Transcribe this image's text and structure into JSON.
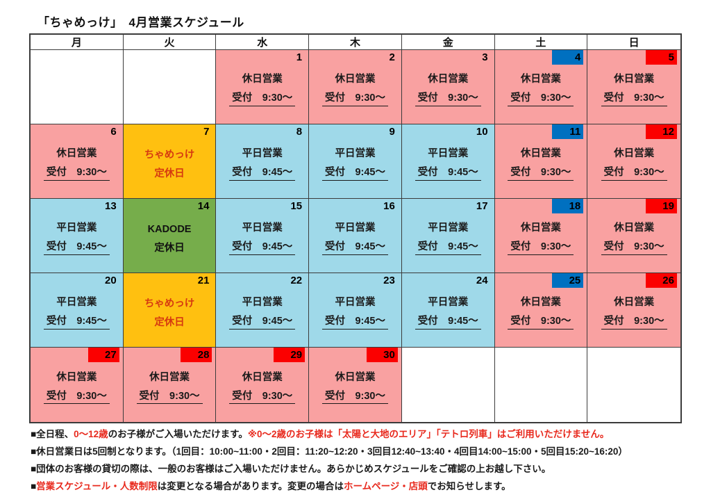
{
  "title": "「ちゃめっけ」　4月営業スケジュール",
  "colors": {
    "text": "#1a1a1a",
    "note_red": "#e8291d",
    "border": "#3b3b3b"
  },
  "calendar": {
    "weekday_headers": [
      "月",
      "火",
      "水",
      "木",
      "金",
      "土",
      "日"
    ],
    "cell_types": {
      "holiday": {
        "line1": "休日営業",
        "line2": "受付　9:30〜",
        "bg": "#f9a1a1",
        "text_color": "#1a1a1a",
        "underline": true
      },
      "weekday": {
        "line1": "平日営業",
        "line2": "受付　9:45〜",
        "bg": "#9fd9e9",
        "text_color": "#1a1a1a",
        "underline": true
      },
      "chamekke_closed": {
        "line1": "ちゃめっけ",
        "line2": "定休日",
        "bg": "#ffc010",
        "text_color": "#d63a10",
        "underline": false
      },
      "kadode_closed": {
        "line1": "KADODE",
        "line2": "定休日",
        "bg": "#76ad4b",
        "text_color": "#111111",
        "underline": false
      },
      "empty": {
        "line1": "",
        "line2": "",
        "bg": "#ffffff",
        "text_color": "#1a1a1a",
        "underline": false
      }
    },
    "badge_colors": {
      "blue": "#0070c0",
      "red": "#fb0000"
    },
    "cells": [
      {
        "date": "",
        "type": "empty",
        "badge": ""
      },
      {
        "date": "",
        "type": "empty",
        "badge": ""
      },
      {
        "date": "1",
        "type": "holiday",
        "badge": ""
      },
      {
        "date": "2",
        "type": "holiday",
        "badge": ""
      },
      {
        "date": "3",
        "type": "holiday",
        "badge": ""
      },
      {
        "date": "4",
        "type": "holiday",
        "badge": "blue"
      },
      {
        "date": "5",
        "type": "holiday",
        "badge": "red"
      },
      {
        "date": "6",
        "type": "holiday",
        "badge": ""
      },
      {
        "date": "7",
        "type": "chamekke_closed",
        "badge": ""
      },
      {
        "date": "8",
        "type": "weekday",
        "badge": ""
      },
      {
        "date": "9",
        "type": "weekday",
        "badge": ""
      },
      {
        "date": "10",
        "type": "weekday",
        "badge": ""
      },
      {
        "date": "11",
        "type": "holiday",
        "badge": "blue"
      },
      {
        "date": "12",
        "type": "holiday",
        "badge": "red"
      },
      {
        "date": "13",
        "type": "weekday",
        "badge": ""
      },
      {
        "date": "14",
        "type": "kadode_closed",
        "badge": ""
      },
      {
        "date": "15",
        "type": "weekday",
        "badge": ""
      },
      {
        "date": "16",
        "type": "weekday",
        "badge": ""
      },
      {
        "date": "17",
        "type": "weekday",
        "badge": ""
      },
      {
        "date": "18",
        "type": "holiday",
        "badge": "blue"
      },
      {
        "date": "19",
        "type": "holiday",
        "badge": "red"
      },
      {
        "date": "20",
        "type": "weekday",
        "badge": ""
      },
      {
        "date": "21",
        "type": "chamekke_closed",
        "badge": ""
      },
      {
        "date": "22",
        "type": "weekday",
        "badge": ""
      },
      {
        "date": "23",
        "type": "weekday",
        "badge": ""
      },
      {
        "date": "24",
        "type": "weekday",
        "badge": ""
      },
      {
        "date": "25",
        "type": "holiday",
        "badge": "blue"
      },
      {
        "date": "26",
        "type": "holiday",
        "badge": "red"
      },
      {
        "date": "27",
        "type": "holiday",
        "badge": "red"
      },
      {
        "date": "28",
        "type": "holiday",
        "badge": "red"
      },
      {
        "date": "29",
        "type": "holiday",
        "badge": "red"
      },
      {
        "date": "30",
        "type": "holiday",
        "badge": "red"
      },
      {
        "date": "",
        "type": "empty",
        "badge": ""
      },
      {
        "date": "",
        "type": "empty",
        "badge": ""
      },
      {
        "date": "",
        "type": "empty",
        "badge": ""
      }
    ]
  },
  "notes": {
    "lines": [
      {
        "segments": [
          {
            "text": "■全日程、",
            "red": false
          },
          {
            "text": "0〜12歳",
            "red": true
          },
          {
            "text": "のお子様がご入場いただけます。",
            "red": false
          },
          {
            "text": "※0〜2歳のお子様は「太陽と大地のエリア」「テトロ列車」はご利用いただけません。",
            "red": true
          }
        ]
      },
      {
        "segments": [
          {
            "text": "■休日営業日は5回制となります。（1回目：10:00~11:00・2回目：11:20~12:20・3回目12:40~13:40・4回目14:00~15:00・5回目15:20~16:20）",
            "red": false
          }
        ]
      },
      {
        "segments": [
          {
            "text": "■団体のお客様の貸切の際は、一般のお客様はご入場いただけません。あらかじめスケジュールをご確認の上お越し下さい。",
            "red": false
          }
        ]
      },
      {
        "segments": [
          {
            "text": "■",
            "red": false
          },
          {
            "text": "営業スケジュール・人数制限",
            "red": true
          },
          {
            "text": "は変更となる場合があります。変更の場合は",
            "red": false
          },
          {
            "text": "ホームページ・店頭",
            "red": true
          },
          {
            "text": "でお知らせします。",
            "red": false
          }
        ]
      }
    ]
  }
}
